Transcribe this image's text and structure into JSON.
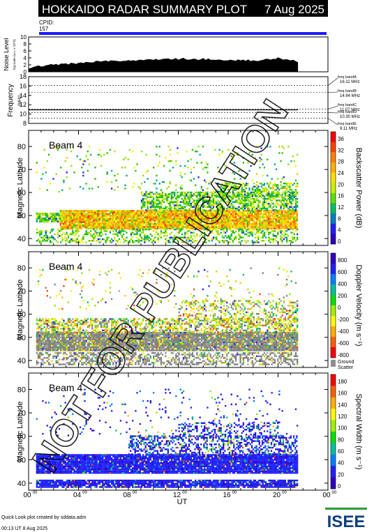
{
  "header": {
    "title": "HOKKAIDO RADAR SUMMARY PLOT",
    "date": "7 Aug 2025",
    "cpid_label": "CPID:",
    "cpid_value": "157"
  },
  "footer": {
    "credit": "Quick Look plot created by sddata.adm",
    "created": "00:13 UT  8 Aug 2025",
    "logo_text": "ISEE"
  },
  "watermark": "NOT FOR PUBLICATION",
  "colors": {
    "cpid_bar": "#1a1aff",
    "ground_scatter": "#909090",
    "noise_fill": "#000000"
  },
  "chart_data": [
    {
      "id": "noise",
      "type": "area",
      "ylabel": "Noise Level",
      "ylabel_sub": "log scale (a.u. x 10^3)",
      "yticks": [
        "0",
        "2",
        "4",
        "6",
        "8",
        "10"
      ],
      "ylim": [
        0,
        10
      ],
      "x_start_hr": 0,
      "x_end_hr": 21.6,
      "x_step_hr": 0.2,
      "values": [
        0.9,
        1.0,
        1.2,
        1.4,
        1.6,
        1.7,
        1.8,
        1.9,
        2.0,
        2.0,
        2.1,
        2.1,
        2.2,
        2.2,
        2.3,
        2.2,
        2.3,
        2.4,
        2.4,
        2.5,
        2.5,
        2.6,
        2.6,
        2.7,
        2.7,
        2.8,
        2.8,
        2.9,
        2.9,
        3.0,
        3.0,
        3.0,
        3.1,
        3.1,
        3.1,
        3.2,
        3.2,
        3.2,
        3.1,
        3.2,
        3.3,
        3.3,
        3.4,
        3.3,
        3.4,
        3.5,
        3.4,
        3.5,
        3.5,
        3.6,
        3.5,
        3.6,
        3.6,
        3.7,
        3.6,
        3.6,
        3.7,
        3.7,
        3.6,
        3.7,
        3.6,
        3.7,
        3.8,
        3.7,
        3.6,
        3.7,
        3.6,
        3.7,
        3.6,
        3.6,
        3.7,
        3.5,
        3.6,
        3.6,
        3.5,
        3.6,
        3.5,
        3.6,
        3.5,
        3.4,
        3.5,
        3.4,
        3.5,
        3.4,
        3.3,
        3.4,
        3.4,
        3.3,
        3.4,
        3.3,
        3.5,
        3.4,
        3.3,
        3.4,
        3.5,
        3.6,
        3.7,
        3.6,
        3.5,
        3.8,
        4.2,
        3.9,
        3.6,
        3.7,
        3.5,
        3.4,
        3.3,
        3.0,
        2.9
      ]
    },
    {
      "id": "frequency",
      "type": "line",
      "ylabel": "Frequency",
      "yunit": "(MHz)",
      "yticks": [
        "8",
        "10",
        "12",
        "14",
        "16",
        "18"
      ],
      "ylim": [
        8,
        18
      ],
      "band_lines_mhz": [
        16.11,
        14.64,
        11.07,
        10.3,
        9.11
      ],
      "freq_levels": [
        {
          "from_hr": 0,
          "to_hr": 21.6,
          "mhz": 10.9
        }
      ],
      "bands": [
        {
          "name": "freq bandA",
          "value": "16.11 MHz"
        },
        {
          "name": "freq bandB",
          "value": "14.64 MHz"
        },
        {
          "name": "freq bandC",
          "value": "11.07 MHz"
        },
        {
          "name": "freq bandD",
          "value": "10.30 MHz"
        },
        {
          "name": "freq bandE",
          "value": "9.11 MHz"
        }
      ]
    },
    {
      "id": "power",
      "type": "heatmap",
      "beam_label": "Beam  4",
      "ylabel": "Magnetic Latitude",
      "ylim": [
        37,
        87
      ],
      "yticks": [
        40,
        50,
        60,
        70,
        80
      ],
      "colorbar_title": "Backscatter Power (dB)",
      "colorbar_ticks": [
        "36",
        "32",
        "28",
        "24",
        "20",
        "16",
        "12",
        "8",
        "4",
        "0"
      ],
      "colorbar_colors": [
        "#ff0000",
        "#ff4000",
        "#ff8000",
        "#ffb000",
        "#ffe000",
        "#c8f000",
        "#60e000",
        "#00c060",
        "#0080c0",
        "#2020ff",
        "#3000c0"
      ],
      "ground_legend": false,
      "swatch_palette": [
        "#ff3000",
        "#ff8000",
        "#ffc000",
        "#f0f000",
        "#90e000",
        "#20c000",
        "#00a0a0",
        "#2020ff",
        "#4000c0"
      ],
      "swatch_weights": {
        "core": [
          0.05,
          0.25,
          0.35,
          0.2,
          0.1,
          0.05,
          0,
          0,
          0
        ],
        "edge": [
          0,
          0,
          0.05,
          0.15,
          0.3,
          0.3,
          0.15,
          0.05,
          0
        ]
      },
      "blocks": [
        {
          "t0": 0.6,
          "t1": 4.5,
          "lat0": 47,
          "lat1": 51,
          "kind": "edge",
          "density": 0.85
        },
        {
          "t0": 2.5,
          "t1": 21.5,
          "lat0": 44,
          "lat1": 52,
          "kind": "core",
          "density": 0.95
        },
        {
          "t0": 9.0,
          "t1": 21.5,
          "lat0": 52,
          "lat1": 60,
          "kind": "edge",
          "density": 0.6
        },
        {
          "t0": 15.0,
          "t1": 21.5,
          "lat0": 58,
          "lat1": 64,
          "kind": "edge",
          "density": 0.45
        },
        {
          "t0": 0.6,
          "t1": 21.5,
          "lat0": 38,
          "lat1": 44,
          "kind": "edge",
          "density": 0.4
        },
        {
          "t0": 0.6,
          "t1": 21.5,
          "lat0": 60,
          "lat1": 80,
          "kind": "edge",
          "density": 0.05
        }
      ]
    },
    {
      "id": "velocity",
      "type": "heatmap",
      "beam_label": "Beam  4",
      "ylabel": "Magnetic Latitude",
      "ylim": [
        37,
        87
      ],
      "yticks": [
        40,
        50,
        60,
        70,
        80
      ],
      "colorbar_title": "Doppler Velocity (m s⁻¹)",
      "colorbar_ticks": [
        "800",
        "600",
        "400",
        "200",
        "0",
        "-200",
        "-400",
        "-600",
        "-800"
      ],
      "colorbar_colors": [
        "#3000c0",
        "#2020ff",
        "#0080ff",
        "#00c0a0",
        "#00e000",
        "#a0f000",
        "#ffff00",
        "#ffb000",
        "#ff6000",
        "#ff0000"
      ],
      "ground_legend": true,
      "ground_label_1": "Ground",
      "ground_label_2": "Scatter",
      "swatch_palette": [
        "#808080",
        "#a0a0a0",
        "#90e000",
        "#f0f000",
        "#ffc000",
        "#00c060",
        "#2020ff",
        "#ff4000"
      ],
      "swatch_weights": {
        "core": [
          0.6,
          0.2,
          0.05,
          0.05,
          0.04,
          0.03,
          0.02,
          0.01
        ],
        "edge": [
          0.15,
          0.1,
          0.2,
          0.2,
          0.15,
          0.1,
          0.05,
          0.05
        ]
      },
      "blocks": [
        {
          "t0": 0.6,
          "t1": 21.5,
          "lat0": 44,
          "lat1": 52,
          "kind": "core",
          "density": 0.95
        },
        {
          "t0": 0.6,
          "t1": 21.5,
          "lat0": 52,
          "lat1": 58,
          "kind": "edge",
          "density": 0.55
        },
        {
          "t0": 12.0,
          "t1": 21.5,
          "lat0": 57,
          "lat1": 66,
          "kind": "edge",
          "density": 0.35
        },
        {
          "t0": 0.6,
          "t1": 21.5,
          "lat0": 38,
          "lat1": 43,
          "kind": "core",
          "density": 0.5
        },
        {
          "t0": 0.6,
          "t1": 21.5,
          "lat0": 62,
          "lat1": 80,
          "kind": "edge",
          "density": 0.04
        }
      ]
    },
    {
      "id": "width",
      "type": "heatmap",
      "beam_label": "Beam  4",
      "ylabel": "Magnetic Latitude",
      "ylim": [
        37,
        87
      ],
      "yticks": [
        40,
        50,
        60,
        70,
        80
      ],
      "colorbar_title": "Spectral Width (m s⁻¹)",
      "colorbar_ticks": [
        "180",
        "160",
        "140",
        "120",
        "100",
        "80",
        "60",
        "40",
        "20",
        "0"
      ],
      "colorbar_colors": [
        "#ff0000",
        "#ff6000",
        "#ffb000",
        "#ffff00",
        "#a0f000",
        "#00e000",
        "#00c0a0",
        "#0080ff",
        "#2020ff",
        "#3000c0"
      ],
      "ground_legend": false,
      "swatch_palette": [
        "#2020ff",
        "#3000c0",
        "#0080ff",
        "#00c060",
        "#90e000",
        "#ffc000",
        "#ff4000"
      ],
      "swatch_weights": {
        "core": [
          0.75,
          0.15,
          0.04,
          0.02,
          0.02,
          0.01,
          0.01
        ],
        "edge": [
          0.55,
          0.15,
          0.1,
          0.08,
          0.06,
          0.04,
          0.02
        ]
      },
      "blocks": [
        {
          "t0": 0.6,
          "t1": 21.5,
          "lat0": 44,
          "lat1": 52,
          "kind": "core",
          "density": 0.95
        },
        {
          "t0": 8.0,
          "t1": 21.5,
          "lat0": 52,
          "lat1": 60,
          "kind": "edge",
          "density": 0.5
        },
        {
          "t0": 12.0,
          "t1": 20.0,
          "lat0": 59,
          "lat1": 66,
          "kind": "edge",
          "density": 0.3
        },
        {
          "t0": 0.6,
          "t1": 21.5,
          "lat0": 38,
          "lat1": 41,
          "kind": "core",
          "density": 0.9
        },
        {
          "t0": 0.6,
          "t1": 21.5,
          "lat0": 60,
          "lat1": 80,
          "kind": "edge",
          "density": 0.04
        }
      ]
    }
  ],
  "xaxis": {
    "label": "UT",
    "range_hr": [
      0,
      24
    ],
    "ticks": [
      {
        "hr": 0,
        "main": "00",
        "sup": "00"
      },
      {
        "hr": 4,
        "main": "04",
        "sup": "00"
      },
      {
        "hr": 8,
        "main": "08",
        "sup": "00"
      },
      {
        "hr": 12,
        "main": "12",
        "sup": "00"
      },
      {
        "hr": 16,
        "main": "16",
        "sup": "00"
      },
      {
        "hr": 20,
        "main": "20",
        "sup": "00"
      },
      {
        "hr": 24,
        "main": "00",
        "sup": "00"
      }
    ]
  }
}
